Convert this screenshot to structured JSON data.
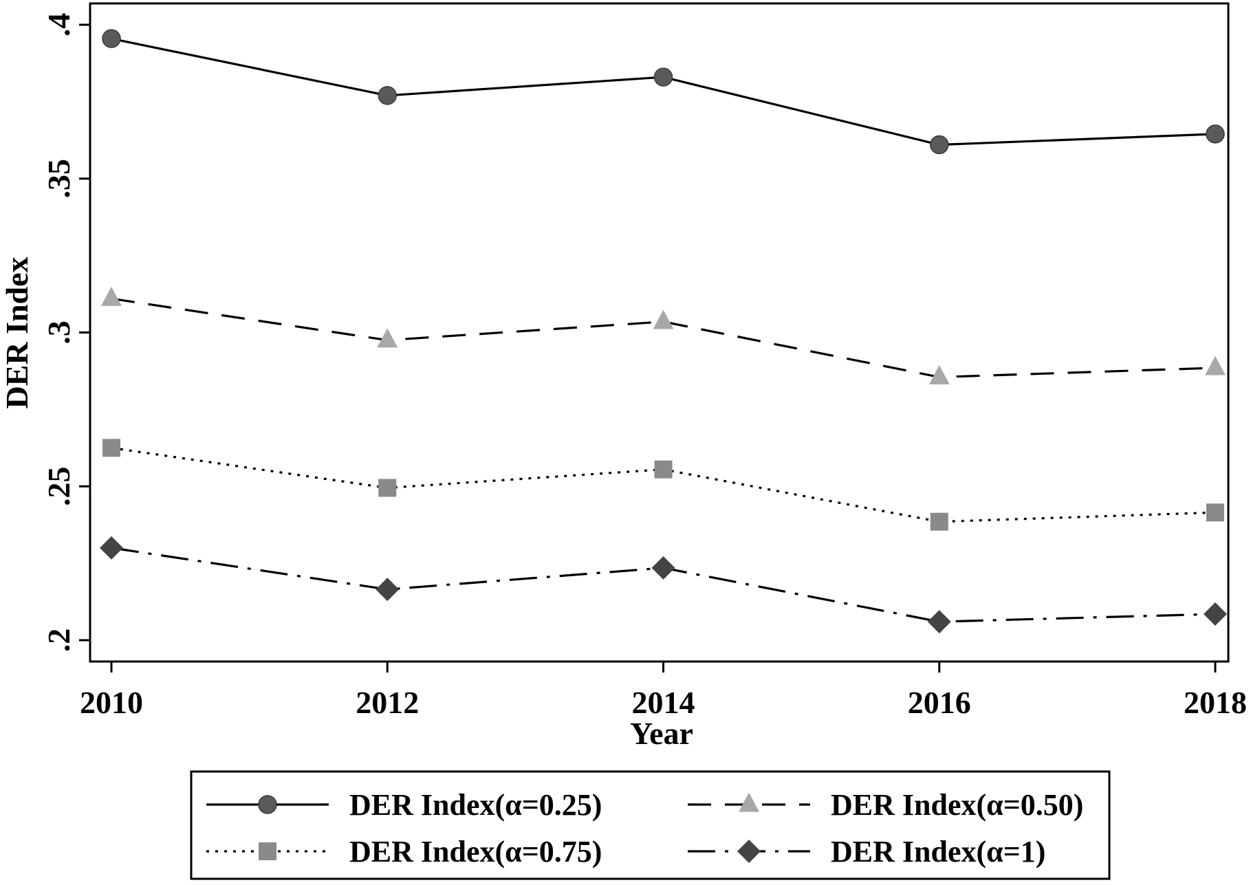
{
  "chart_data": {
    "type": "line",
    "xlabel": "Year",
    "ylabel": "DER Index",
    "x": [
      2010,
      2012,
      2014,
      2016,
      2018
    ],
    "xlim": [
      2010,
      2018
    ],
    "ylim": [
      0.2,
      0.4
    ],
    "x_ticks": [
      {
        "value": 2010,
        "label": "2010"
      },
      {
        "value": 2012,
        "label": "2012"
      },
      {
        "value": 2014,
        "label": "2014"
      },
      {
        "value": 2016,
        "label": "2016"
      },
      {
        "value": 2018,
        "label": "2018"
      }
    ],
    "y_ticks": [
      {
        "value": 0.2,
        "label": ".2"
      },
      {
        "value": 0.25,
        "label": ".25"
      },
      {
        "value": 0.3,
        "label": ".3"
      },
      {
        "value": 0.35,
        "label": ".35"
      },
      {
        "value": 0.4,
        "label": ".4"
      }
    ],
    "grid": false,
    "legend_position": "bottom",
    "series": [
      {
        "name": "DER Index(α=0.25)",
        "values": [
          0.3955,
          0.377,
          0.383,
          0.361,
          0.3645
        ],
        "marker": "circle",
        "line_style": "solid",
        "marker_color": "#5a5a5a"
      },
      {
        "name": "DER Index(α=0.50)",
        "values": [
          0.311,
          0.2975,
          0.3035,
          0.2855,
          0.2885
        ],
        "marker": "triangle",
        "line_style": "dashed",
        "marker_color": "#a8a8a8"
      },
      {
        "name": "DER Index(α=0.75)",
        "values": [
          0.2625,
          0.2495,
          0.2555,
          0.2385,
          0.2415
        ],
        "marker": "square",
        "line_style": "dotted",
        "marker_color": "#8a8a8a"
      },
      {
        "name": "DER Index(α=1)",
        "values": [
          0.23,
          0.2165,
          0.2235,
          0.206,
          0.2085
        ],
        "marker": "diamond",
        "line_style": "dashdot",
        "marker_color": "#444444"
      }
    ]
  }
}
